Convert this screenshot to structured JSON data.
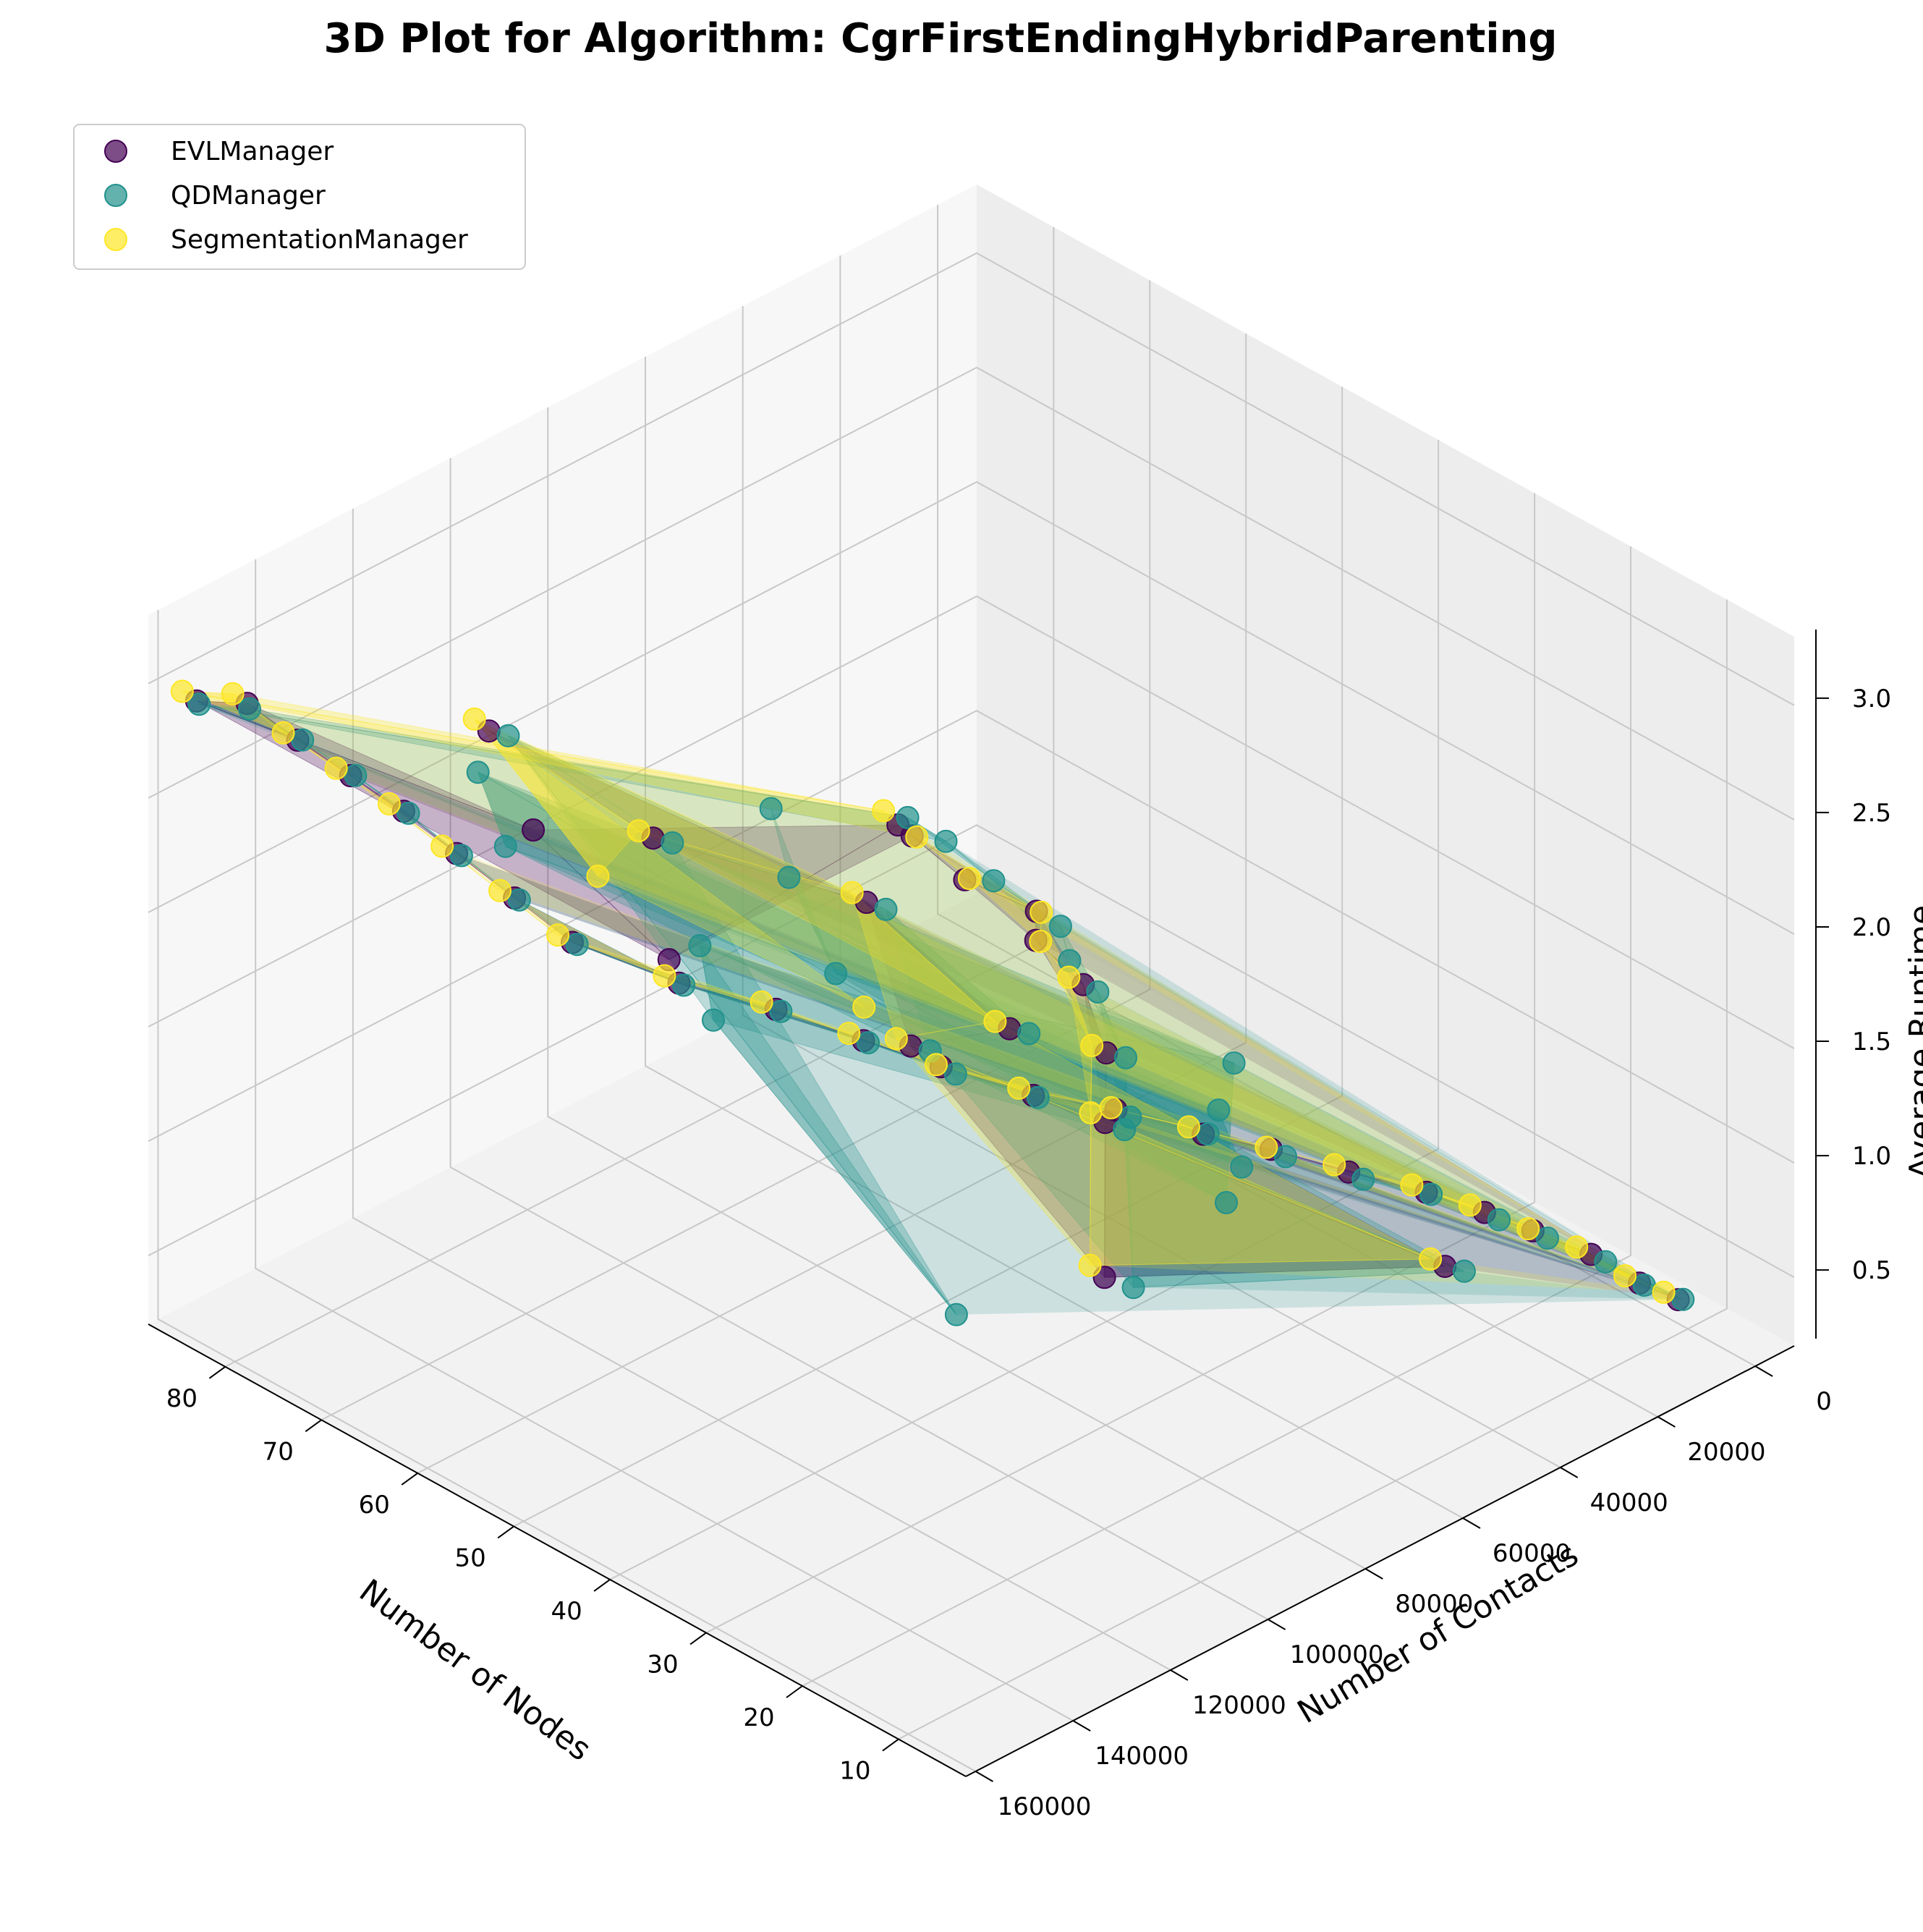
{
  "chart_data": {
    "type": "scatter",
    "projection": "3d",
    "title": "3D Plot for Algorithm: CgrFirstEndingHybridParenting",
    "xlabel": "Number of Nodes",
    "ylabel": "Number of Contacts",
    "zlabel": "Average Runtime",
    "xlim": [
      3,
      88
    ],
    "ylim": [
      -8000,
      162000
    ],
    "zlim": [
      0.2,
      3.3
    ],
    "xticks": [
      80,
      70,
      60,
      50,
      40,
      30,
      20,
      10
    ],
    "yticks": [
      0,
      20000,
      40000,
      60000,
      80000,
      100000,
      120000,
      140000,
      160000
    ],
    "zticks": [
      0.5,
      1.0,
      1.5,
      2.0,
      2.5,
      3.0
    ],
    "xtick_labels": [
      "80",
      "70",
      "60",
      "50",
      "40",
      "30",
      "20",
      "10"
    ],
    "ytick_labels": [
      "0",
      "20000",
      "40000",
      "60000",
      "80000",
      "100000",
      "120000",
      "140000",
      "160000"
    ],
    "ztick_labels": [
      "0.5",
      "1.0",
      "1.5",
      "2.0",
      "2.5",
      "3.0"
    ],
    "grid": true,
    "legend": "top-left",
    "surface": "trisurf",
    "series": [
      {
        "name": "EVLManager",
        "color": "#440154",
        "points": [
          [
            10,
            2000,
            0.35
          ],
          [
            12,
            6000,
            0.42
          ],
          [
            15,
            10000,
            0.52
          ],
          [
            18,
            16000,
            0.62
          ],
          [
            20,
            22000,
            0.72
          ],
          [
            22,
            30000,
            0.85
          ],
          [
            25,
            40000,
            0.98
          ],
          [
            28,
            50000,
            1.12
          ],
          [
            30,
            60000,
            1.25
          ],
          [
            33,
            72000,
            1.42
          ],
          [
            35,
            85000,
            1.58
          ],
          [
            38,
            98000,
            1.78
          ],
          [
            40,
            110000,
            1.98
          ],
          [
            43,
            122000,
            2.18
          ],
          [
            46,
            136000,
            2.38
          ],
          [
            50,
            150000,
            2.62
          ],
          [
            55,
            152000,
            2.72
          ],
          [
            60,
            154000,
            2.82
          ],
          [
            65,
            155000,
            2.9
          ],
          [
            70,
            156000,
            2.95
          ],
          [
            75,
            157000,
            3.0
          ],
          [
            80,
            157500,
            3.05
          ],
          [
            85,
            158000,
            2.95
          ],
          [
            50,
            158000,
            3.2
          ],
          [
            45,
            140000,
            2.55
          ],
          [
            82,
            20000,
            0.95
          ],
          [
            78,
            25000,
            1.05
          ],
          [
            70,
            30000,
            1.1
          ],
          [
            60,
            35000,
            1.25
          ],
          [
            55,
            45000,
            1.35
          ],
          [
            45,
            55000,
            1.5
          ],
          [
            35,
            70000,
            1.6
          ],
          [
            25,
            90000,
            1.75
          ],
          [
            20,
            100000,
            1.3
          ],
          [
            15,
            40000,
            0.8
          ],
          [
            30,
            120000,
            2.3
          ],
          [
            40,
            80000,
            1.7
          ],
          [
            65,
            60000,
            1.45
          ],
          [
            72,
            90000,
            1.9
          ],
          [
            84,
            100000,
            2.2
          ]
        ]
      },
      {
        "name": "QDManager",
        "color": "#21918c",
        "points": [
          [
            10,
            1000,
            0.34
          ],
          [
            12,
            5000,
            0.4
          ],
          [
            14,
            9000,
            0.5
          ],
          [
            17,
            15000,
            0.6
          ],
          [
            19,
            21000,
            0.7
          ],
          [
            22,
            29000,
            0.83
          ],
          [
            24,
            39000,
            0.96
          ],
          [
            27,
            49000,
            1.1
          ],
          [
            30,
            59000,
            1.24
          ],
          [
            32,
            71000,
            1.4
          ],
          [
            35,
            84000,
            1.56
          ],
          [
            37,
            97000,
            1.76
          ],
          [
            40,
            109000,
            1.96
          ],
          [
            43,
            121000,
            2.16
          ],
          [
            46,
            135000,
            2.36
          ],
          [
            50,
            149000,
            2.6
          ],
          [
            55,
            151000,
            2.7
          ],
          [
            60,
            153000,
            2.8
          ],
          [
            65,
            154000,
            2.88
          ],
          [
            70,
            155000,
            2.94
          ],
          [
            75,
            156000,
            2.99
          ],
          [
            80,
            157000,
            3.02
          ],
          [
            85,
            157500,
            2.93
          ],
          [
            82,
            18000,
            0.96
          ],
          [
            76,
            22000,
            1.04
          ],
          [
            68,
            28000,
            1.12
          ],
          [
            58,
            34000,
            1.22
          ],
          [
            52,
            44000,
            1.32
          ],
          [
            44,
            54000,
            1.48
          ],
          [
            34,
            68000,
            1.58
          ],
          [
            24,
            88000,
            1.72
          ],
          [
            18,
            98000,
            1.28
          ],
          [
            14,
            38000,
            0.78
          ],
          [
            29,
            118000,
            2.28
          ],
          [
            39,
            78000,
            1.68
          ],
          [
            64,
            58000,
            1.42
          ],
          [
            71,
            88000,
            1.88
          ],
          [
            83,
            98000,
            2.18
          ],
          [
            5,
            160000,
            2.15
          ],
          [
            48,
            125000,
            2.05
          ],
          [
            57,
            110000,
            2.0
          ],
          [
            26,
            60000,
            1.2
          ],
          [
            36,
            45000,
            1.05
          ],
          [
            62,
            140000,
            2.65
          ],
          [
            75,
            120000,
            2.45
          ],
          [
            20,
            75000,
            1.35
          ],
          [
            42,
            30000,
            0.95
          ],
          [
            53,
            90000,
            1.75
          ],
          [
            68,
            70000,
            1.6
          ],
          [
            80,
            50000,
            1.4
          ]
        ]
      },
      {
        "name": "SegmentationManager",
        "color": "#fde725",
        "points": [
          [
            11,
            3000,
            0.37
          ],
          [
            13,
            7000,
            0.44
          ],
          [
            16,
            11000,
            0.54
          ],
          [
            18,
            17000,
            0.64
          ],
          [
            21,
            23000,
            0.74
          ],
          [
            23,
            31000,
            0.87
          ],
          [
            26,
            41000,
            1.0
          ],
          [
            28,
            51000,
            1.14
          ],
          [
            31,
            61000,
            1.27
          ],
          [
            33,
            73000,
            1.44
          ],
          [
            36,
            86000,
            1.6
          ],
          [
            38,
            99000,
            1.8
          ],
          [
            41,
            111000,
            2.0
          ],
          [
            44,
            123000,
            2.2
          ],
          [
            47,
            137000,
            2.4
          ],
          [
            51,
            151000,
            2.64
          ],
          [
            56,
            153000,
            2.74
          ],
          [
            61,
            155000,
            2.84
          ],
          [
            66,
            156000,
            2.92
          ],
          [
            71,
            157000,
            2.97
          ],
          [
            76,
            158000,
            3.02
          ],
          [
            81,
            158500,
            3.08
          ],
          [
            86,
            159000,
            2.98
          ],
          [
            83,
            21000,
            1.0
          ],
          [
            77,
            26000,
            1.08
          ],
          [
            69,
            31000,
            1.14
          ],
          [
            59,
            36000,
            1.28
          ],
          [
            54,
            46000,
            1.38
          ],
          [
            46,
            56000,
            1.52
          ],
          [
            36,
            71000,
            1.62
          ],
          [
            26,
            91000,
            1.78
          ],
          [
            21,
            101000,
            1.34
          ],
          [
            16,
            41000,
            0.82
          ],
          [
            31,
            121000,
            2.32
          ],
          [
            41,
            81000,
            1.72
          ],
          [
            66,
            61000,
            1.48
          ],
          [
            73,
            91000,
            1.92
          ],
          [
            85,
            101000,
            2.24
          ],
          [
            60,
            125000,
            2.4
          ],
          [
            45,
            100000,
            1.9
          ]
        ]
      }
    ]
  }
}
